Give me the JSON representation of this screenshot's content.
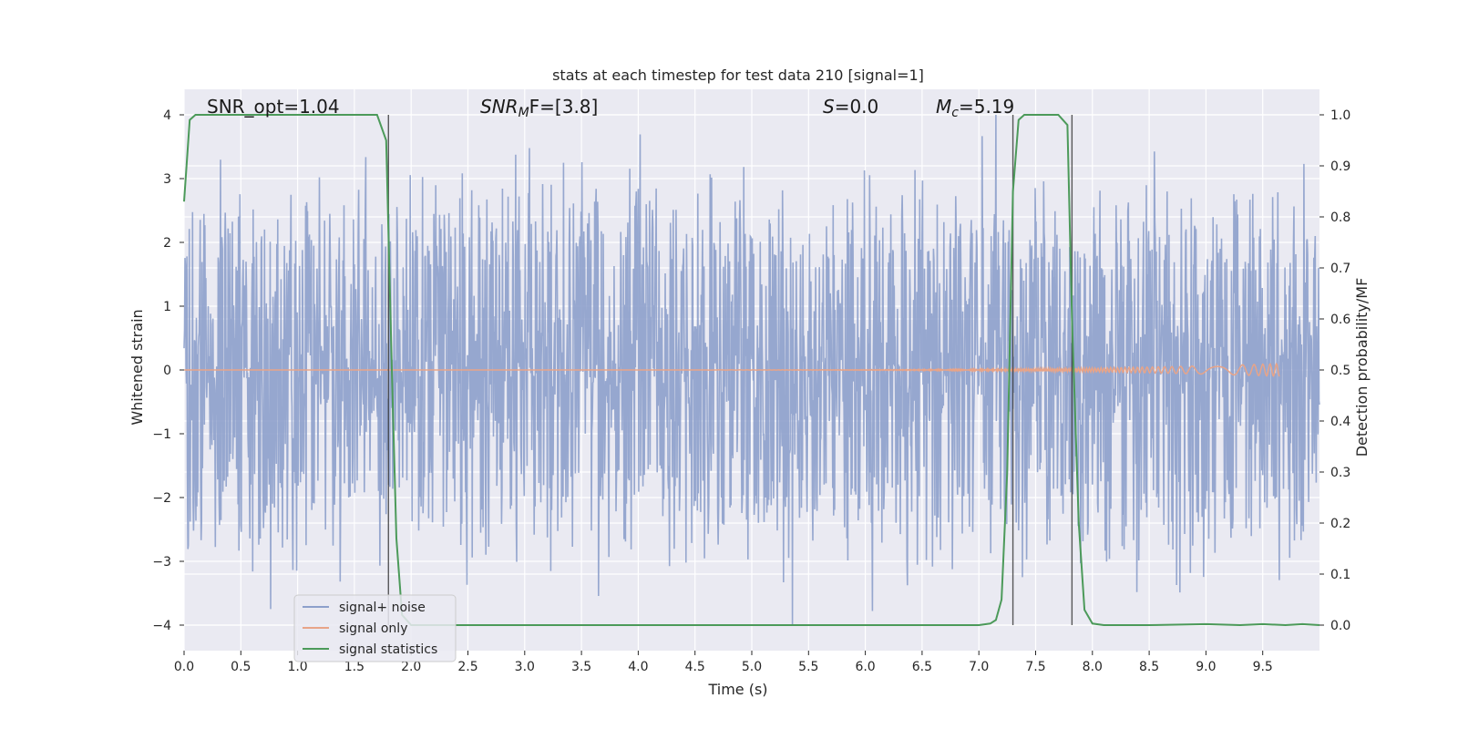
{
  "chart_data": {
    "type": "line",
    "title": "stats at each timestep for test data 210 [signal=1]",
    "xlabel": "Time (s)",
    "ylabel": "Whitened strain",
    "ylabel_right": "Detection probability/MF",
    "xlim": [
      0,
      10
    ],
    "ylim": [
      -4.4,
      4.4
    ],
    "ylim_right": [
      -0.05,
      1.05
    ],
    "xticks": [
      0.0,
      0.5,
      1.0,
      1.5,
      2.0,
      2.5,
      3.0,
      3.5,
      4.0,
      4.5,
      5.0,
      5.5,
      6.0,
      6.5,
      7.0,
      7.5,
      8.0,
      8.5,
      9.0,
      9.5
    ],
    "xtick_labels": [
      "0.0",
      "0.5",
      "1.0",
      "1.5",
      "2.0",
      "2.5",
      "3.0",
      "3.5",
      "4.0",
      "4.5",
      "5.0",
      "5.5",
      "6.0",
      "6.5",
      "7.0",
      "7.5",
      "8.0",
      "8.5",
      "9.0",
      "9.5"
    ],
    "yticks": [
      -4,
      -3,
      -2,
      -1,
      0,
      1,
      2,
      3,
      4
    ],
    "ytick_labels": [
      "−4",
      "−3",
      "−2",
      "−1",
      "0",
      "1",
      "2",
      "3",
      "4"
    ],
    "yticks_right": [
      0.0,
      0.1,
      0.2,
      0.3,
      0.4,
      0.5,
      0.6,
      0.7,
      0.8,
      0.9,
      1.0
    ],
    "ytick_labels_right": [
      "0.0",
      "0.1",
      "0.2",
      "0.3",
      "0.4",
      "0.5",
      "0.6",
      "0.7",
      "0.8",
      "0.9",
      "1.0"
    ],
    "grid": true,
    "legend_position": "lower-left",
    "annotations": {
      "snr_opt": "SNR_opt=1.04",
      "snr_mf_symbol": "SNR",
      "snr_mf_sub": "M",
      "snr_mf_rest": "F=[3.8]",
      "s_symbol": "S",
      "s_rest": "=0.0",
      "mc_symbol": "M",
      "mc_sub": "c",
      "mc_rest": "=5.19"
    },
    "vlines": [
      1.8,
      7.3,
      7.82
    ],
    "series": [
      {
        "name": "signal+ noise",
        "color": "#8da0cb",
        "axis": "left",
        "kind": "noise",
        "sigma": 0.8,
        "peak_max": 4.0,
        "peak_min": -4.0
      },
      {
        "name": "signal only",
        "color": "#e8a488",
        "axis": "left",
        "kind": "chirp",
        "x_end": 9.65,
        "amp_end": 0.1
      },
      {
        "name": "signal statistics",
        "color": "#4c9a5a",
        "axis": "right",
        "kind": "line",
        "x": [
          0.0,
          0.05,
          0.1,
          0.2,
          0.5,
          1.0,
          1.5,
          1.7,
          1.78,
          1.83,
          1.87,
          1.92,
          2.0,
          2.5,
          3.0,
          4.0,
          5.0,
          6.0,
          6.5,
          7.0,
          7.1,
          7.15,
          7.2,
          7.25,
          7.3,
          7.35,
          7.4,
          7.5,
          7.7,
          7.78,
          7.82,
          7.88,
          7.93,
          8.0,
          8.1,
          8.5,
          9.0,
          9.3,
          9.5,
          9.7,
          9.85,
          10.0
        ],
        "y": [
          0.83,
          0.99,
          1.0,
          1.0,
          1.0,
          1.0,
          1.0,
          1.0,
          0.95,
          0.5,
          0.17,
          0.02,
          0.0,
          0.0,
          0.0,
          0.0,
          0.0,
          0.0,
          0.0,
          0.0,
          0.003,
          0.01,
          0.05,
          0.3,
          0.85,
          0.99,
          1.0,
          1.0,
          1.0,
          0.98,
          0.6,
          0.2,
          0.03,
          0.003,
          0.0,
          0.0,
          0.002,
          0.0,
          0.002,
          0.0,
          0.002,
          0.0
        ]
      }
    ]
  }
}
